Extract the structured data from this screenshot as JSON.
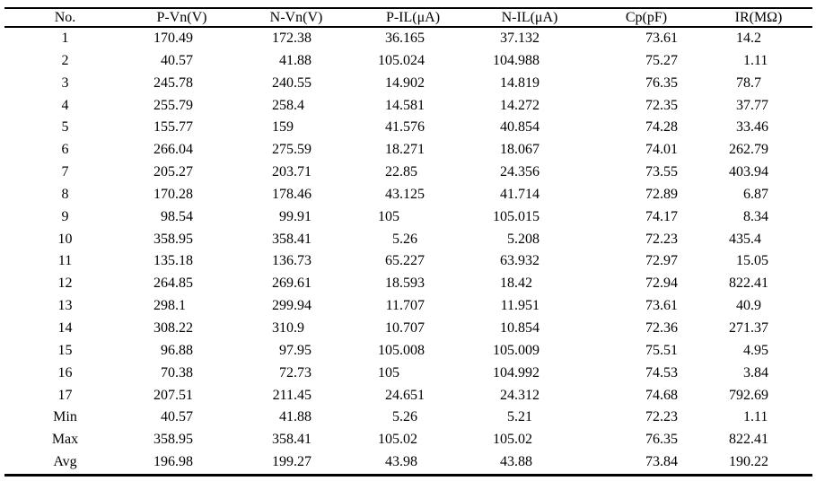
{
  "meta": {
    "background_color": "#ffffff",
    "text_color": "#000000",
    "rule_color": "#000000"
  },
  "chart_data": {
    "type": "table",
    "columns": [
      "No.",
      "P-Vn(V)",
      "N-Vn(V)",
      "P-IL(μA)",
      "N-IL(μA)",
      "Cp(pF)",
      "IR(MΩ)"
    ],
    "rows": [
      [
        "1",
        "170.49",
        "172.38",
        "36.165",
        "37.132",
        "73.61",
        "14.2"
      ],
      [
        "2",
        "40.57",
        "41.88",
        "105.024",
        "104.988",
        "75.27",
        "1.11"
      ],
      [
        "3",
        "245.78",
        "240.55",
        "14.902",
        "14.819",
        "76.35",
        "78.7"
      ],
      [
        "4",
        "255.79",
        "258.4",
        "14.581",
        "14.272",
        "72.35",
        "37.77"
      ],
      [
        "5",
        "155.77",
        "159",
        "41.576",
        "40.854",
        "74.28",
        "33.46"
      ],
      [
        "6",
        "266.04",
        "275.59",
        "18.271",
        "18.067",
        "74.01",
        "262.79"
      ],
      [
        "7",
        "205.27",
        "203.71",
        "22.85",
        "24.356",
        "73.55",
        "403.94"
      ],
      [
        "8",
        "170.28",
        "178.46",
        "43.125",
        "41.714",
        "72.89",
        "6.87"
      ],
      [
        "9",
        "98.54",
        "99.91",
        "105",
        "105.015",
        "74.17",
        "8.34"
      ],
      [
        "10",
        "358.95",
        "358.41",
        "5.26",
        "5.208",
        "72.23",
        "435.4"
      ],
      [
        "11",
        "135.18",
        "136.73",
        "65.227",
        "63.932",
        "72.97",
        "15.05"
      ],
      [
        "12",
        "264.85",
        "269.61",
        "18.593",
        "18.42",
        "72.94",
        "822.41"
      ],
      [
        "13",
        "298.1",
        "299.94",
        "11.707",
        "11.951",
        "73.61",
        "40.9"
      ],
      [
        "14",
        "308.22",
        "310.9",
        "10.707",
        "10.854",
        "72.36",
        "271.37"
      ],
      [
        "15",
        "96.88",
        "97.95",
        "105.008",
        "105.009",
        "75.51",
        "4.95"
      ],
      [
        "16",
        "70.38",
        "72.73",
        "105",
        "104.992",
        "74.53",
        "3.84"
      ],
      [
        "17",
        "207.51",
        "211.45",
        "24.651",
        "24.312",
        "74.68",
        "792.69"
      ],
      [
        "Min",
        "40.57",
        "41.88",
        "5.26",
        "5.21",
        "72.23",
        "1.11"
      ],
      [
        "Max",
        "358.95",
        "358.41",
        "105.02",
        "105.02",
        "76.35",
        "822.41"
      ],
      [
        "Avg",
        "196.98",
        "199.27",
        "43.98",
        "43.88",
        "73.84",
        "190.22"
      ]
    ]
  }
}
